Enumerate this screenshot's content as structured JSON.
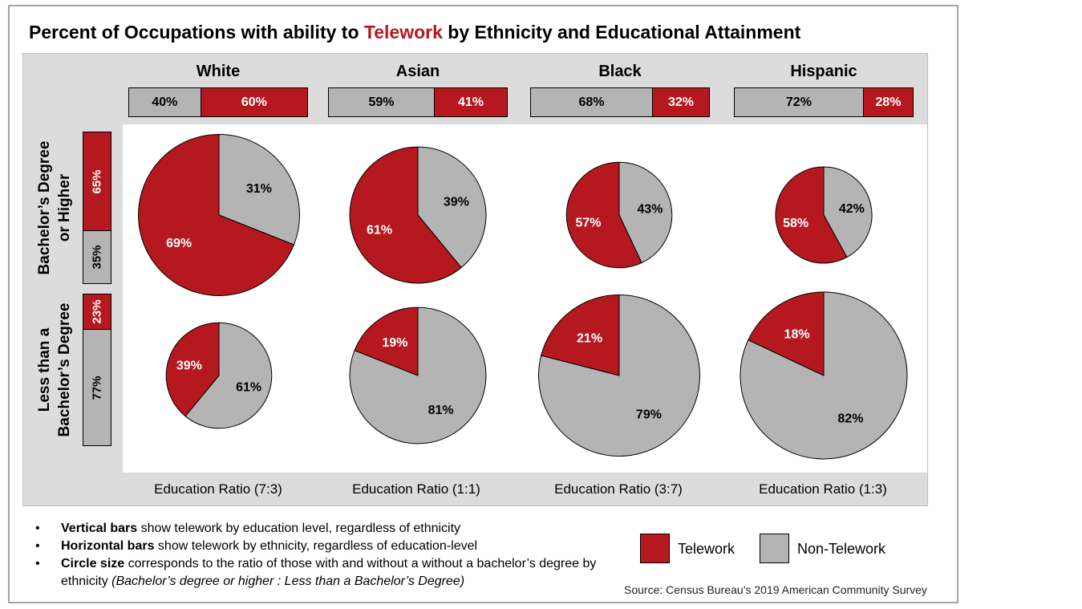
{
  "title": {
    "prefix": "Percent of Occupations with ability to ",
    "highlight": "Telework",
    "suffix": " by Ethnicity and Educational Attainment"
  },
  "colors": {
    "telework": "#b5191f",
    "non_telework": "#b4b4b4"
  },
  "chart_data": {
    "type": "pie",
    "ethnicities": [
      "White",
      "Asian",
      "Black",
      "Hispanic"
    ],
    "rows": [
      "Bachelor’s Degree or Higher",
      "Less than a Bachelor’s Degree"
    ],
    "row_labels": [
      {
        "line1": "Bachelor’s Degree",
        "line2": "or Higher"
      },
      {
        "line1": "Less than a",
        "line2": "Bachelor’s Degree"
      }
    ],
    "horizontal_bars": [
      {
        "ethnicity": "White",
        "non_telework": 40,
        "telework": 60,
        "non_telework_label": "40%",
        "telework_label": "60%"
      },
      {
        "ethnicity": "Asian",
        "non_telework": 59,
        "telework": 41,
        "non_telework_label": "59%",
        "telework_label": "41%"
      },
      {
        "ethnicity": "Black",
        "non_telework": 68,
        "telework": 32,
        "non_telework_label": "68%",
        "telework_label": "32%"
      },
      {
        "ethnicity": "Hispanic",
        "non_telework": 72,
        "telework": 28,
        "non_telework_label": "72%",
        "telework_label": "28%"
      }
    ],
    "vertical_bars": [
      {
        "row": "Bachelor’s Degree or Higher",
        "telework": 65,
        "non_telework": 35,
        "telework_label": "65%",
        "non_telework_label": "35%"
      },
      {
        "row": "Less than a Bachelor’s Degree",
        "telework": 23,
        "non_telework": 77,
        "telework_label": "23%",
        "non_telework_label": "77%"
      }
    ],
    "pies": [
      {
        "ethnicity": "White",
        "row": "Bachelor’s Degree or Higher",
        "telework": 69,
        "non_telework": 31,
        "telework_label": "69%",
        "non_telework_label": "31%",
        "education_share": 0.7
      },
      {
        "ethnicity": "Asian",
        "row": "Bachelor’s Degree or Higher",
        "telework": 61,
        "non_telework": 39,
        "telework_label": "61%",
        "non_telework_label": "39%",
        "education_share": 0.5
      },
      {
        "ethnicity": "Black",
        "row": "Bachelor’s Degree or Higher",
        "telework": 57,
        "non_telework": 43,
        "telework_label": "57%",
        "non_telework_label": "43%",
        "education_share": 0.3
      },
      {
        "ethnicity": "Hispanic",
        "row": "Bachelor’s Degree or Higher",
        "telework": 58,
        "non_telework": 42,
        "telework_label": "58%",
        "non_telework_label": "42%",
        "education_share": 0.25
      },
      {
        "ethnicity": "White",
        "row": "Less than a Bachelor’s Degree",
        "telework": 39,
        "non_telework": 61,
        "telework_label": "39%",
        "non_telework_label": "61%",
        "education_share": 0.3
      },
      {
        "ethnicity": "Asian",
        "row": "Less than a Bachelor’s Degree",
        "telework": 19,
        "non_telework": 81,
        "telework_label": "19%",
        "non_telework_label": "81%",
        "education_share": 0.5
      },
      {
        "ethnicity": "Black",
        "row": "Less than a Bachelor’s Degree",
        "telework": 21,
        "non_telework": 79,
        "telework_label": "21%",
        "non_telework_label": "79%",
        "education_share": 0.7
      },
      {
        "ethnicity": "Hispanic",
        "row": "Less than a Bachelor’s Degree",
        "telework": 18,
        "non_telework": 82,
        "telework_label": "18%",
        "non_telework_label": "82%",
        "education_share": 0.75
      }
    ],
    "education_ratios": [
      "Education Ratio (7:3)",
      "Education Ratio (1:1)",
      "Education Ratio (3:7)",
      "Education Ratio (1:3)"
    ],
    "legend": [
      {
        "label": "Telework",
        "color": "#b5191f"
      },
      {
        "label": "Non-Telework",
        "color": "#b4b4b4"
      }
    ]
  },
  "notes": [
    {
      "bold": "Vertical bars",
      "text": " show telework by education level, regardless of ethnicity"
    },
    {
      "bold": "Horizontal bars",
      "text": " show telework by ethnicity, regardless of education-level"
    },
    {
      "bold": "Circle size",
      "text": " corresponds to the ratio of those with and without a without a bachelor’s degree by ethnicity ",
      "italic": "(Bachelor’s degree or higher : Less than a Bachelor’s Degree)"
    }
  ],
  "bullet": "•",
  "source": "Source: Census Bureau’s 2019 American Community Survey"
}
